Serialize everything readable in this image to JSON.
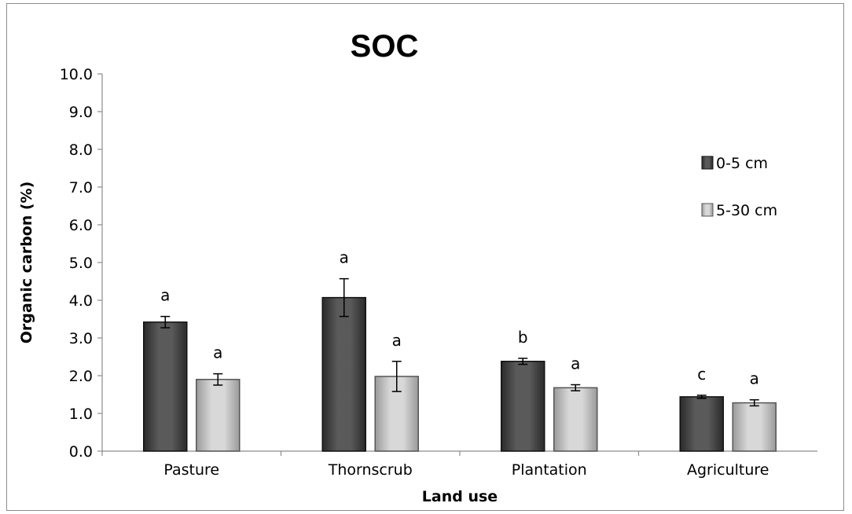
{
  "chart_data": {
    "type": "bar",
    "title": "SOC",
    "xlabel": "Land use",
    "ylabel": "Organic carbon (%)",
    "ylim": [
      0,
      10
    ],
    "ytick_step": 1,
    "ytick_labels": [
      "0.0",
      "1.0",
      "2.0",
      "3.0",
      "4.0",
      "5.0",
      "6.0",
      "7.0",
      "8.0",
      "9.0",
      "10.0"
    ],
    "categories": [
      "Pasture",
      "Thornscrub",
      "Plantation",
      "Agriculture"
    ],
    "series": [
      {
        "name": "0-5 cm",
        "color": "#4d4d4d",
        "values": [
          3.42,
          4.07,
          2.38,
          1.44
        ],
        "errors": [
          0.15,
          0.5,
          0.08,
          0.04
        ],
        "significance": [
          "a",
          "a",
          "b",
          "c"
        ]
      },
      {
        "name": "5-30 cm",
        "color": "#c4c4c4",
        "values": [
          1.9,
          1.98,
          1.68,
          1.28
        ],
        "errors": [
          0.15,
          0.4,
          0.08,
          0.08
        ],
        "significance": [
          "a",
          "a",
          "a",
          "a"
        ]
      }
    ],
    "legend_position": "right",
    "grid": false
  }
}
